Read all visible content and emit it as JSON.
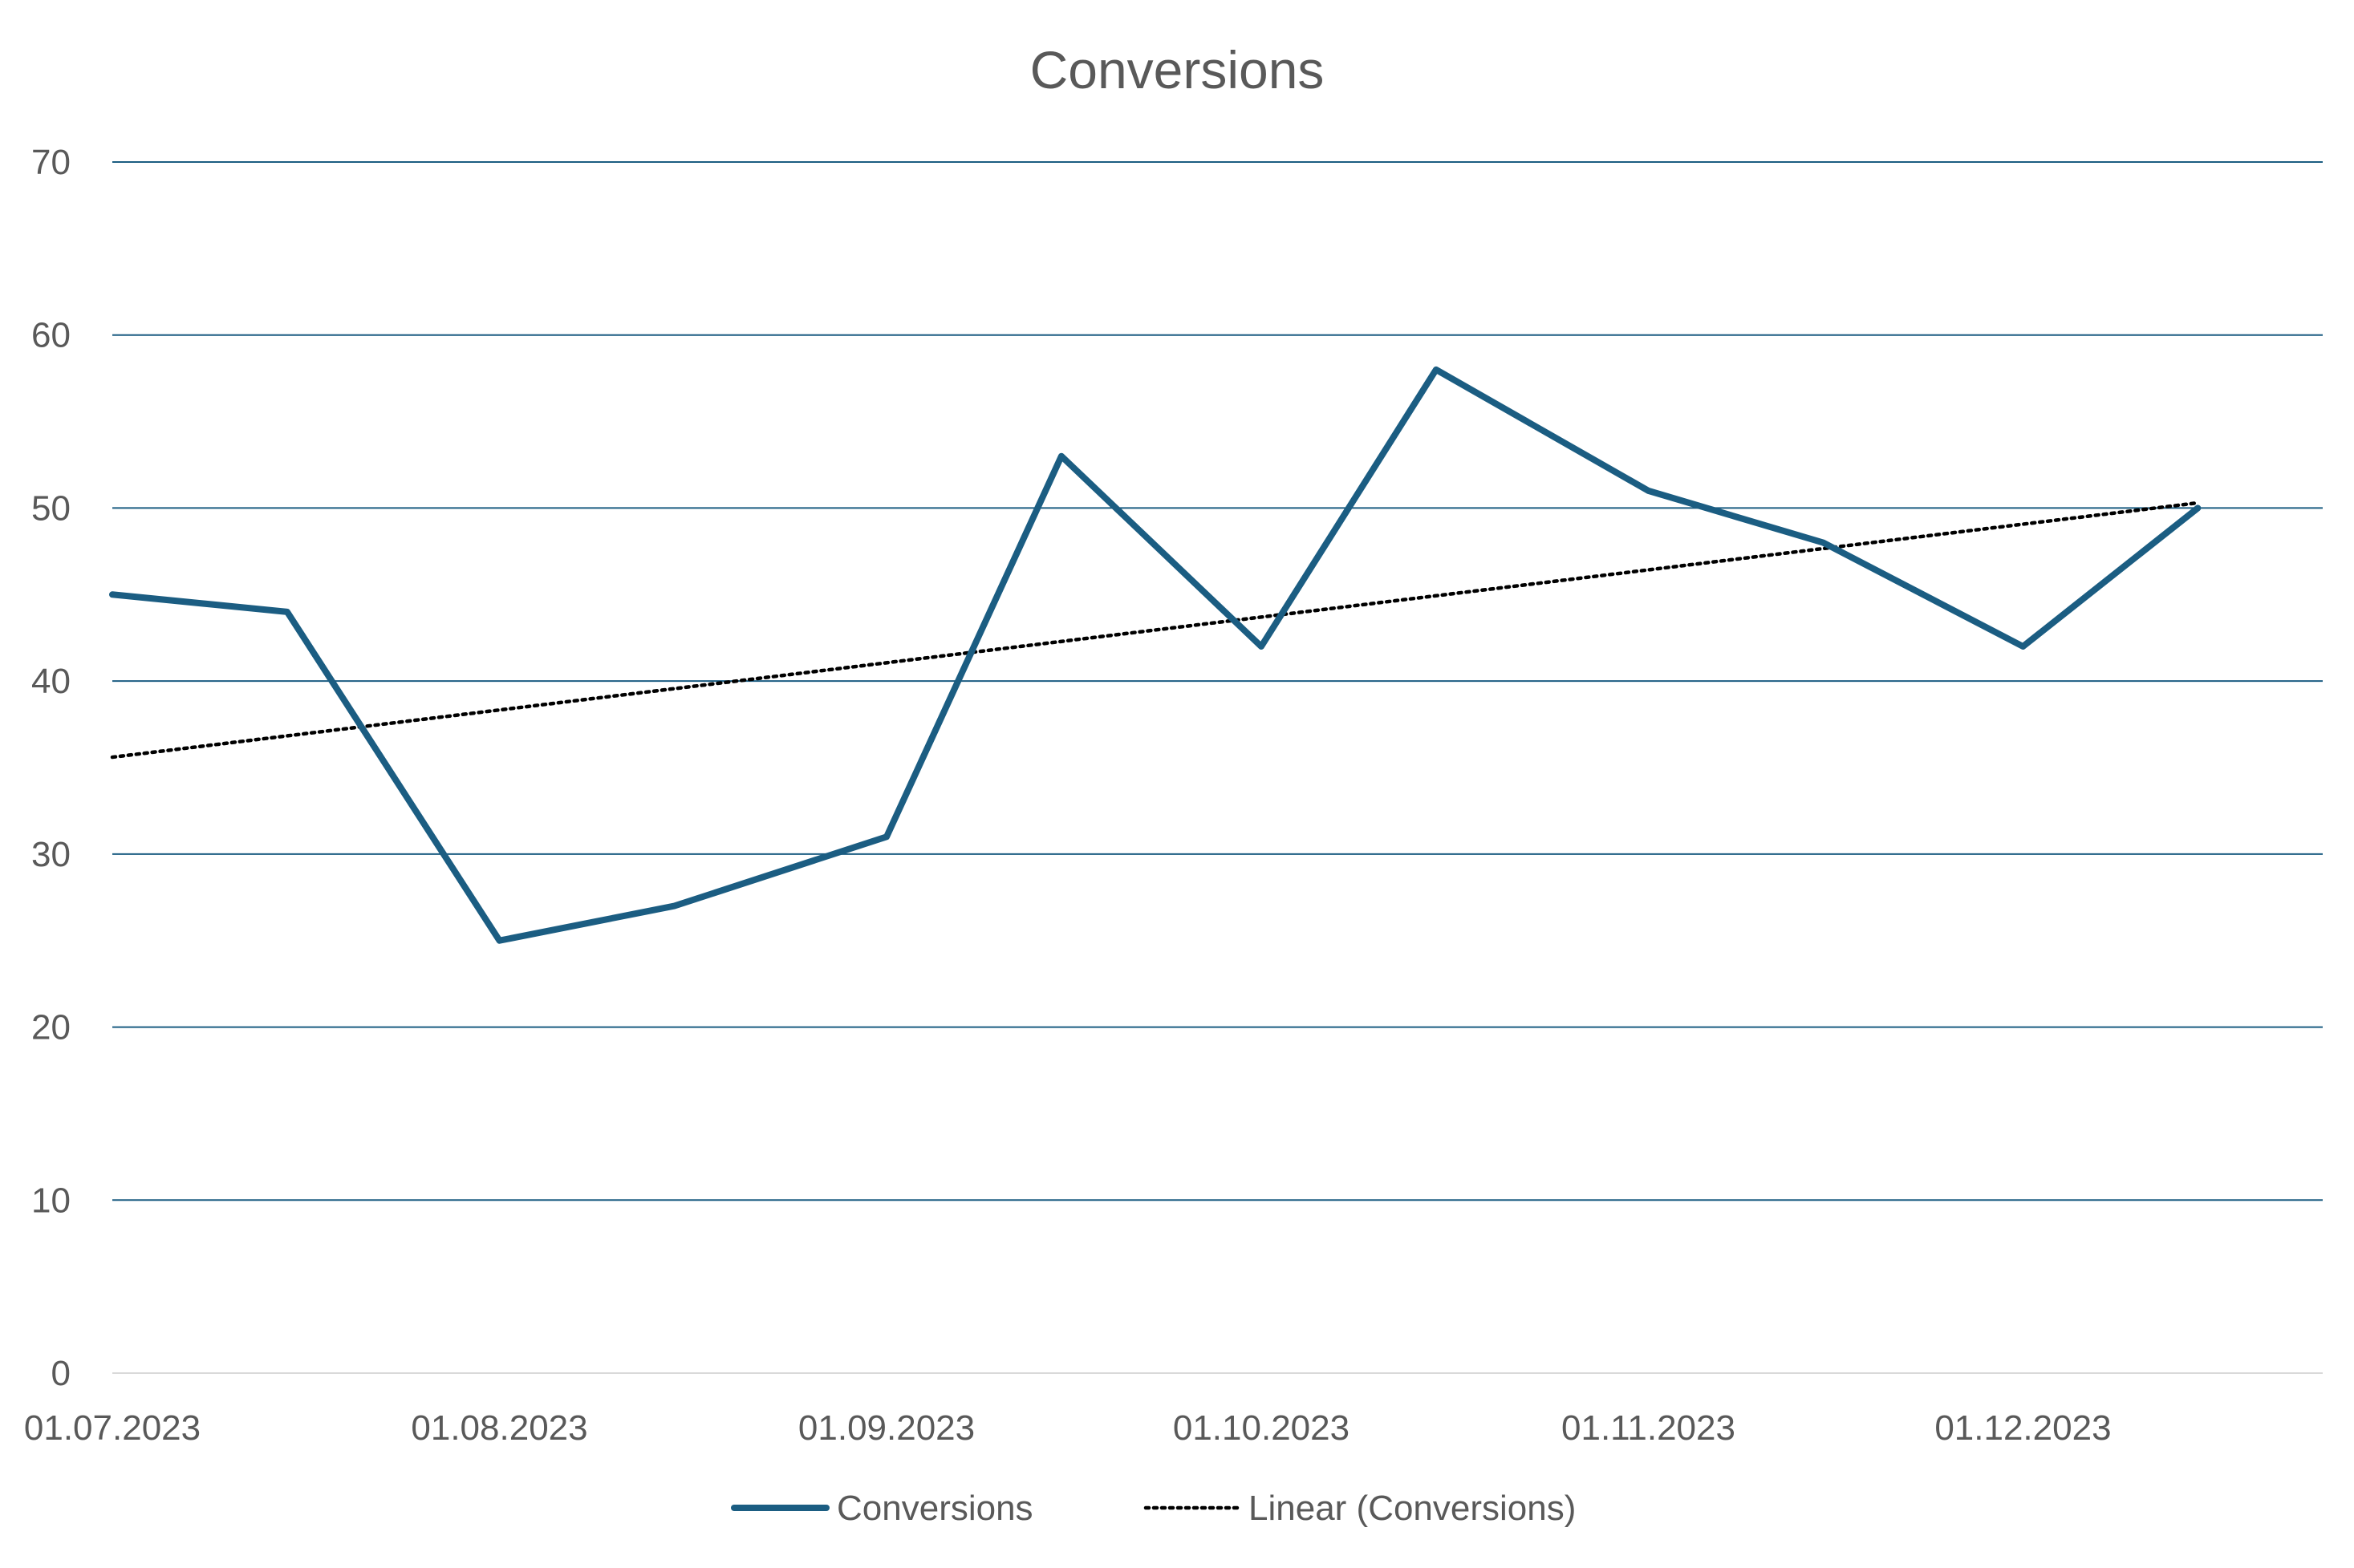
{
  "chart_data": {
    "type": "line",
    "title": "Conversions",
    "xlabel": "",
    "ylabel": "",
    "x_ticks": [
      "01.07.2023",
      "01.08.2023",
      "01.09.2023",
      "01.10.2023",
      "01.11.2023",
      "01.12.2023"
    ],
    "x_range": [
      "2023-07-01",
      "2023-12-25"
    ],
    "y_ticks": [
      "0",
      "10",
      "20",
      "30",
      "40",
      "50",
      "60",
      "70"
    ],
    "ylim": [
      0,
      70
    ],
    "grid": true,
    "legend_position": "bottom",
    "series": [
      {
        "name": "Conversions",
        "color": "#1b5d82",
        "style": "solid",
        "x": [
          "2023-07-01",
          "2023-07-15",
          "2023-08-01",
          "2023-08-15",
          "2023-09-01",
          "2023-09-15",
          "2023-10-01",
          "2023-10-15",
          "2023-11-01",
          "2023-11-15",
          "2023-12-01",
          "2023-12-15"
        ],
        "values": [
          45,
          44,
          25,
          27,
          31,
          53,
          42,
          58,
          51,
          48,
          42,
          50
        ]
      }
    ],
    "trendline": {
      "name": "Linear (Conversions)",
      "type": "linear",
      "color": "#000000",
      "style": "dotted",
      "x": [
        "2023-07-01",
        "2023-12-15"
      ],
      "values": [
        35.6,
        50.3
      ]
    }
  }
}
